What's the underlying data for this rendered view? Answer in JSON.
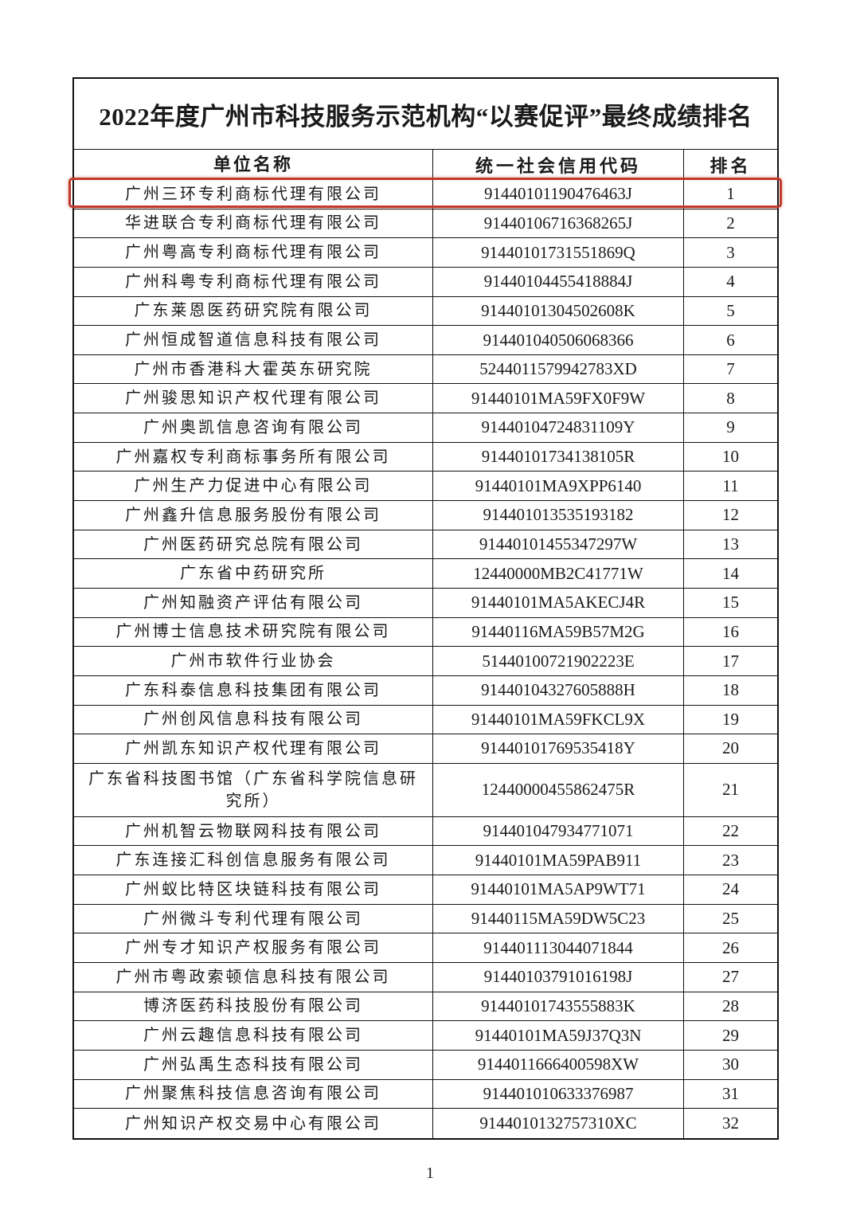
{
  "title": "2022年度广州市科技服务示范机构“以赛促评”最终成绩排名",
  "headers": {
    "name": "单位名称",
    "code": "统一社会信用代码",
    "rank": "排名"
  },
  "highlight_color": "#c0392b",
  "rows": [
    {
      "name": "广州三环专利商标代理有限公司",
      "code": "91440101190476463J",
      "rank": "1"
    },
    {
      "name": "华进联合专利商标代理有限公司",
      "code": "91440106716368265J",
      "rank": "2"
    },
    {
      "name": "广州粤高专利商标代理有限公司",
      "code": "91440101731551869Q",
      "rank": "3"
    },
    {
      "name": "广州科粤专利商标代理有限公司",
      "code": "91440104455418884J",
      "rank": "4"
    },
    {
      "name": "广东莱恩医药研究院有限公司",
      "code": "91440101304502608K",
      "rank": "5"
    },
    {
      "name": "广州恒成智道信息科技有限公司",
      "code": "91440104050606836 6",
      "rank": "6"
    },
    {
      "name": "广州市香港科大霍英东研究院",
      "code": "5244011579942783XD",
      "rank": "7"
    },
    {
      "name": "广州骏思知识产权代理有限公司",
      "code": "91440101MA59FX0F9W",
      "rank": "8"
    },
    {
      "name": "广州奥凯信息咨询有限公司",
      "code": "91440104724831109Y",
      "rank": "9"
    },
    {
      "name": "广州嘉权专利商标事务所有限公司",
      "code": "91440101734138105R",
      "rank": "10"
    },
    {
      "name": "广州生产力促进中心有限公司",
      "code": "91440101MA9XPP6140",
      "rank": "11"
    },
    {
      "name": "广州鑫升信息服务股份有限公司",
      "code": "91440101353519318 2",
      "rank": "12"
    },
    {
      "name": "广州医药研究总院有限公司",
      "code": "91440101455347297W",
      "rank": "13"
    },
    {
      "name": "广东省中药研究所",
      "code": "12440000MB2C41771W",
      "rank": "14"
    },
    {
      "name": "广州知融资产评估有限公司",
      "code": "91440101MA5AKECJ4R",
      "rank": "15"
    },
    {
      "name": "广州博士信息技术研究院有限公司",
      "code": "91440116MA59B57M2G",
      "rank": "16"
    },
    {
      "name": "广州市软件行业协会",
      "code": "51440100721902223E",
      "rank": "17"
    },
    {
      "name": "广东科泰信息科技集团有限公司",
      "code": "91440104327605888H",
      "rank": "18"
    },
    {
      "name": "广州创风信息科技有限公司",
      "code": "91440101MA59FKCL9X",
      "rank": "19"
    },
    {
      "name": "广州凯东知识产权代理有限公司",
      "code": "91440101769535418Y",
      "rank": "20"
    },
    {
      "name": "广东省科技图书馆（广东省科学院信息研究所）",
      "code": "12440000455862475R",
      "rank": "21"
    },
    {
      "name": "广州机智云物联网科技有限公司",
      "code": "91440104793477107 1",
      "rank": "22"
    },
    {
      "name": "广东连接汇科创信息服务有限公司",
      "code": "91440101MA59PAB911",
      "rank": "23"
    },
    {
      "name": "广州蚁比特区块链科技有限公司",
      "code": "91440101MA5AP9WT71",
      "rank": "24"
    },
    {
      "name": "广州微斗专利代理有限公司",
      "code": "91440115MA59DW5C23",
      "rank": "25"
    },
    {
      "name": "广州专才知识产权服务有限公司",
      "code": "91440111304407184 4",
      "rank": "26"
    },
    {
      "name": "广州市粤政索顿信息科技有限公司",
      "code": "91440103791016198J",
      "rank": "27"
    },
    {
      "name": "博济医药科技股份有限公司",
      "code": "91440101743555883K",
      "rank": "28"
    },
    {
      "name": "广州云趣信息科技有限公司",
      "code": "91440101MA59J37Q3N",
      "rank": "29"
    },
    {
      "name": "广州弘禹生态科技有限公司",
      "code": "9144011666400598XW",
      "rank": "30"
    },
    {
      "name": "广州聚焦科技信息咨询有限公司",
      "code": "91440101063337698 7",
      "rank": "31"
    },
    {
      "name": "广州知识产权交易中心有限公司",
      "code": "9144010132757310XC",
      "rank": "32"
    }
  ],
  "page_number": "1"
}
